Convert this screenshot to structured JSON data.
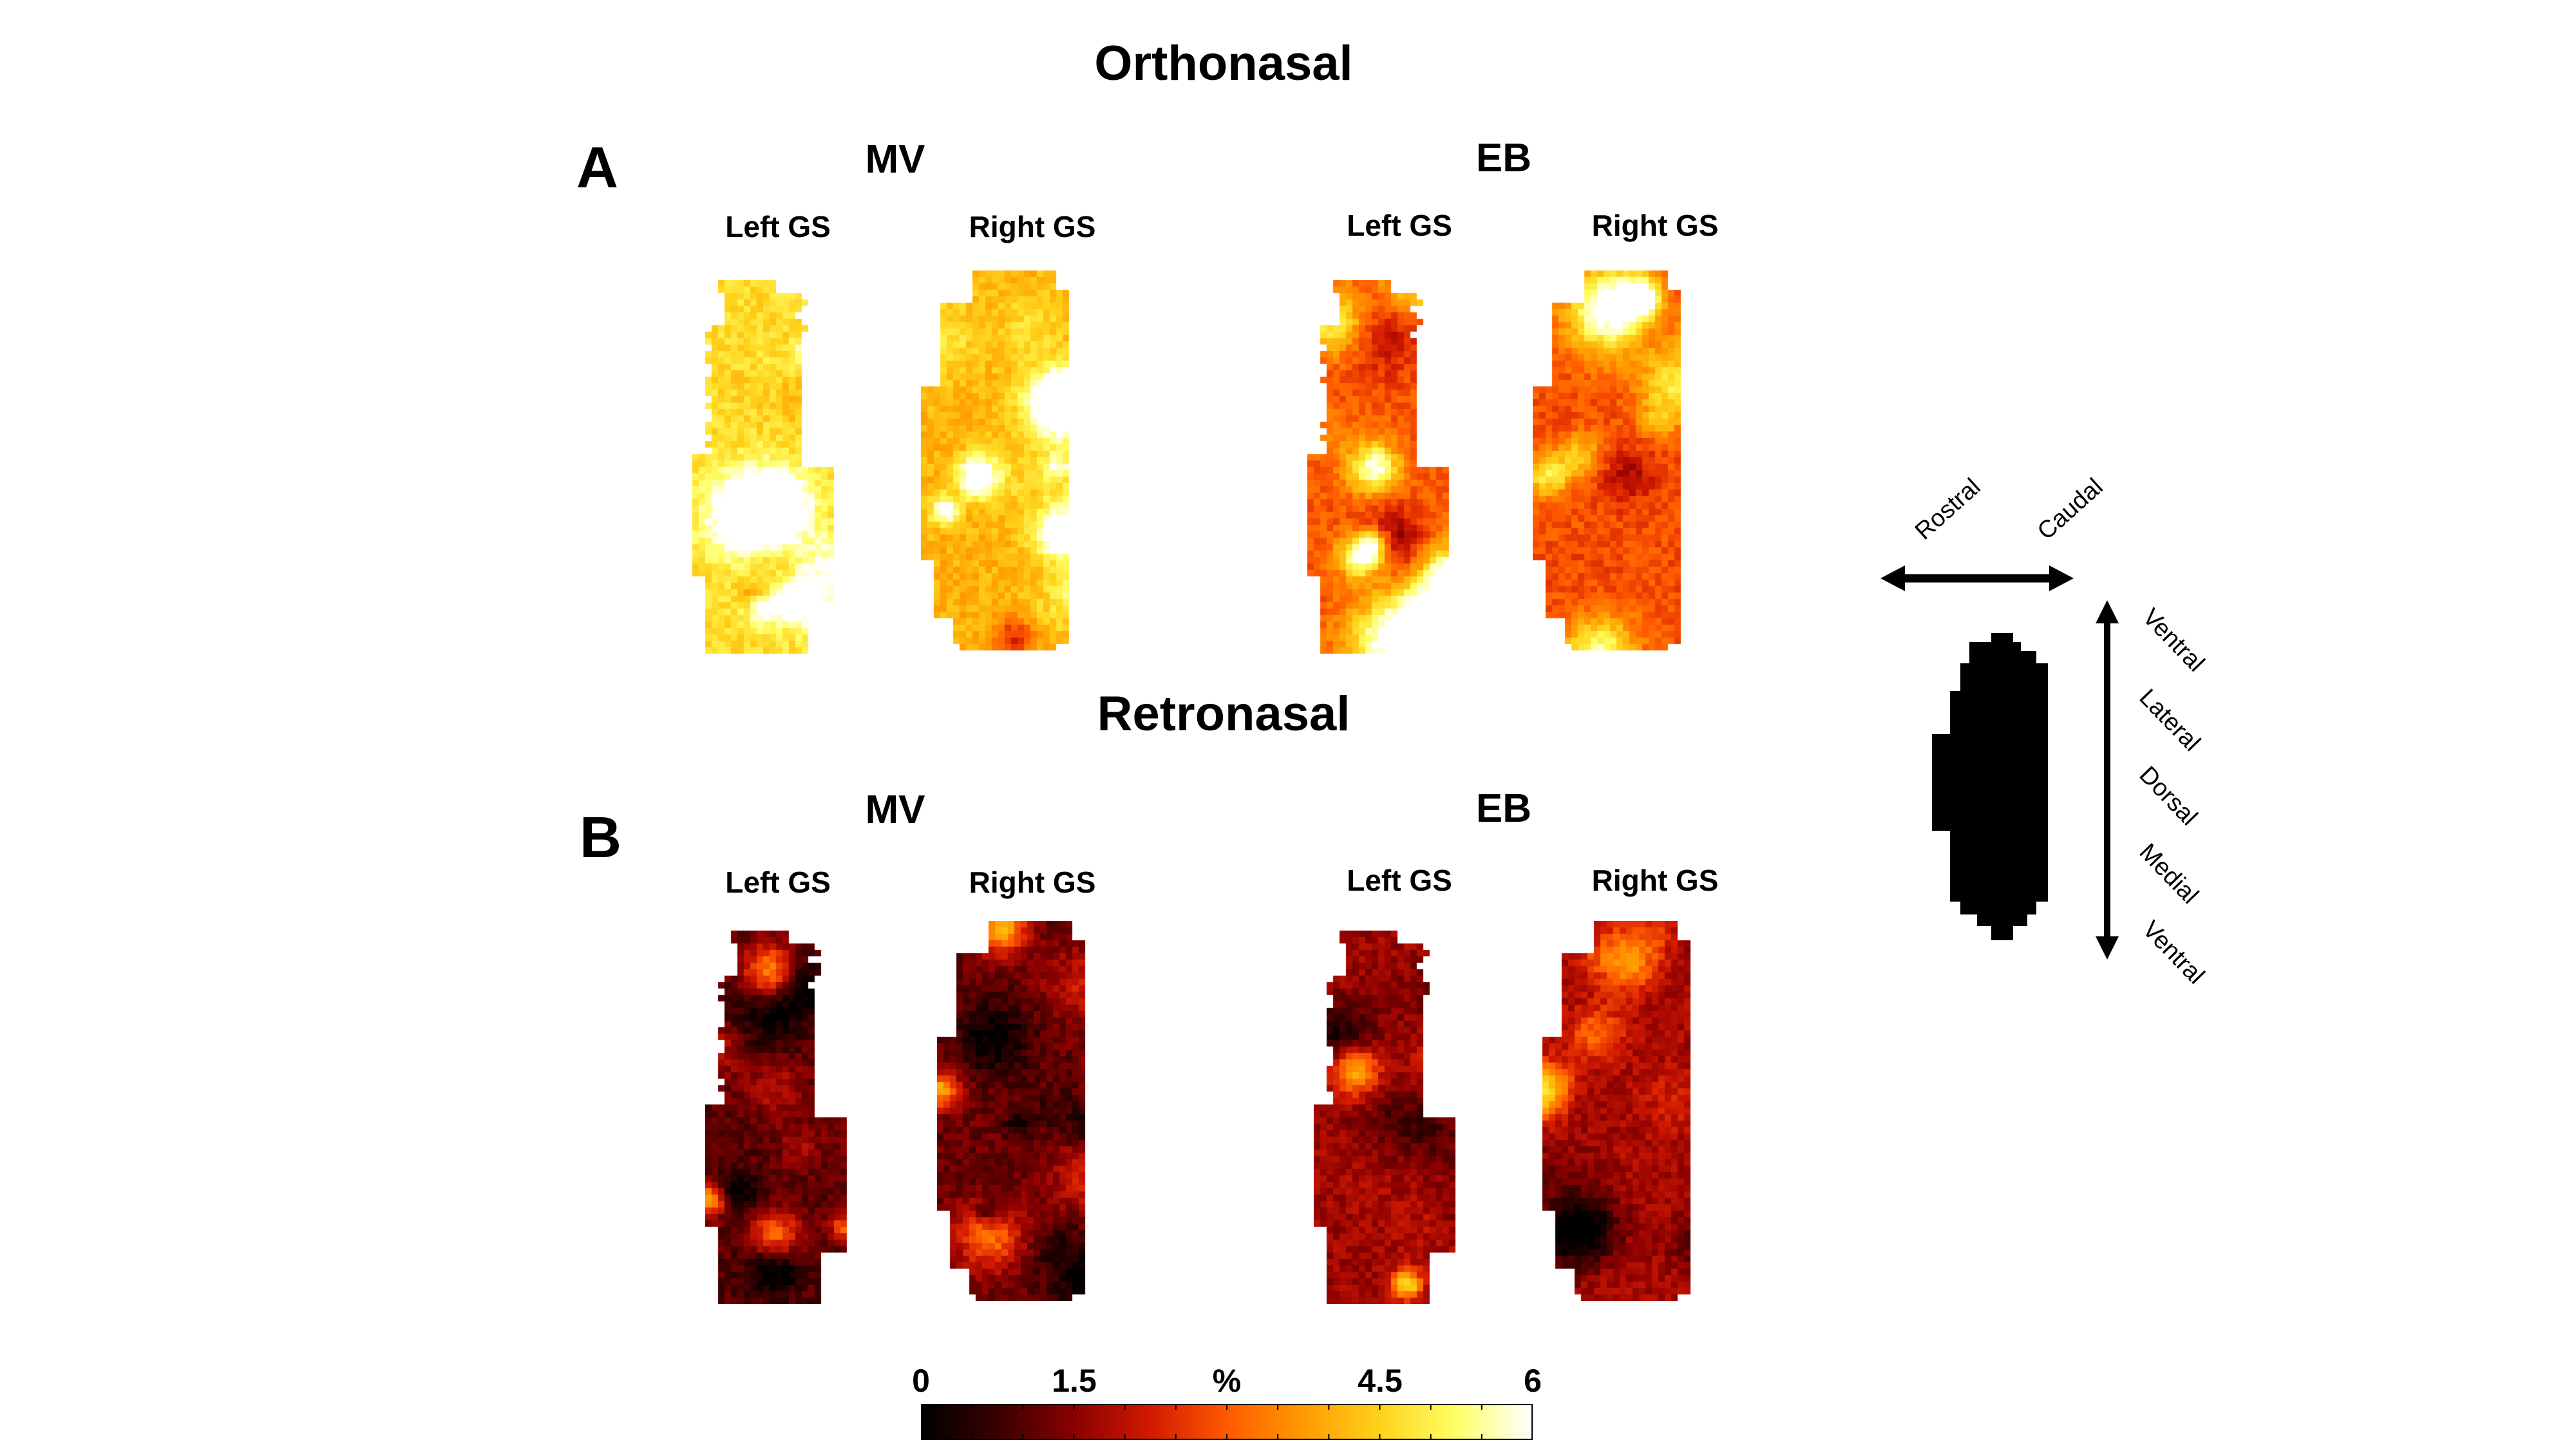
{
  "sections": {
    "orthonasal": "Orthonasal",
    "retronasal": "Retronasal"
  },
  "panels": {
    "a": "A",
    "b": "B"
  },
  "groups": {
    "mv": "MV",
    "eb": "EB"
  },
  "sides": {
    "left": "Left GS",
    "right": "Right GS"
  },
  "colorbar": {
    "ticks": [
      "0",
      "1.5",
      "%",
      "4.5",
      "6"
    ],
    "range": [
      0,
      6
    ],
    "unit": "%",
    "stops": [
      "#000000",
      "#3a0000",
      "#8a0000",
      "#d11a00",
      "#ff5a00",
      "#ff9a00",
      "#ffd21a",
      "#ffff66",
      "#ffffff"
    ]
  },
  "legend": {
    "rostral": "Rostral",
    "caudal": "Caudal",
    "axis_labels": [
      "Ventral",
      "Lateral",
      "Dorsal",
      "Medial",
      "Ventral"
    ]
  }
}
